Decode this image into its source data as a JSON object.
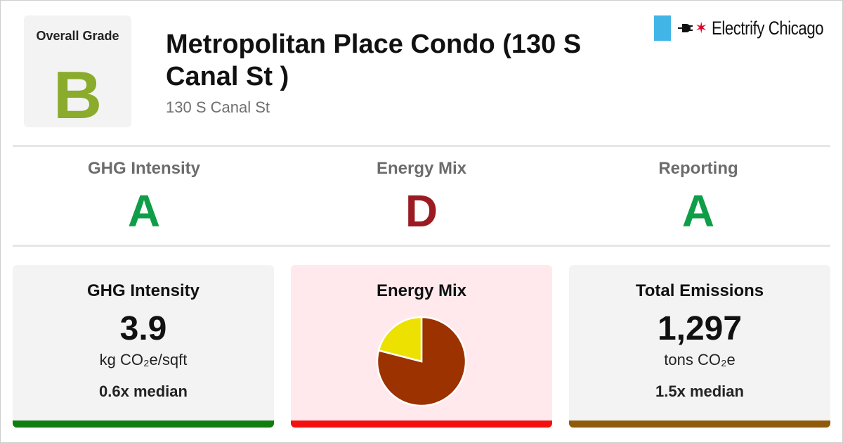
{
  "overall": {
    "label": "Overall Grade",
    "grade": "B",
    "grade_color": "#8aab2c"
  },
  "building": {
    "title": "Metropolitan Place Condo (130 S Canal St )",
    "address": "130 S Canal St"
  },
  "logo": {
    "text": "Electrify Chicago",
    "flag_color": "#41b6e6",
    "star_color": "#e4002b",
    "icons": [
      "plug-icon",
      "star-icon"
    ]
  },
  "grades": [
    {
      "label": "GHG Intensity",
      "grade": "A",
      "color": "#0e9e48"
    },
    {
      "label": "Energy Mix",
      "grade": "D",
      "color": "#9b1b22"
    },
    {
      "label": "Reporting",
      "grade": "A",
      "color": "#0e9e48"
    }
  ],
  "cards": [
    {
      "title": "GHG Intensity",
      "value": "3.9",
      "unit": "kg CO₂e/sqft",
      "median": "0.6x median",
      "background": "#f3f3f3",
      "bar_color": "#0f7d0f"
    },
    {
      "title": "Energy Mix",
      "background": "#ffe9ec",
      "bar_color": "#f51010"
    },
    {
      "title": "Total Emissions",
      "value": "1,297",
      "unit": "tons CO₂e",
      "median": "1.5x median",
      "background": "#f3f3f3",
      "bar_color": "#8f5a0a"
    }
  ],
  "chart_data": {
    "type": "pie",
    "values": [
      0.79,
      0.21
    ],
    "colors": [
      "#9b3200",
      "#ece100"
    ],
    "stroke": "#ffffff"
  }
}
